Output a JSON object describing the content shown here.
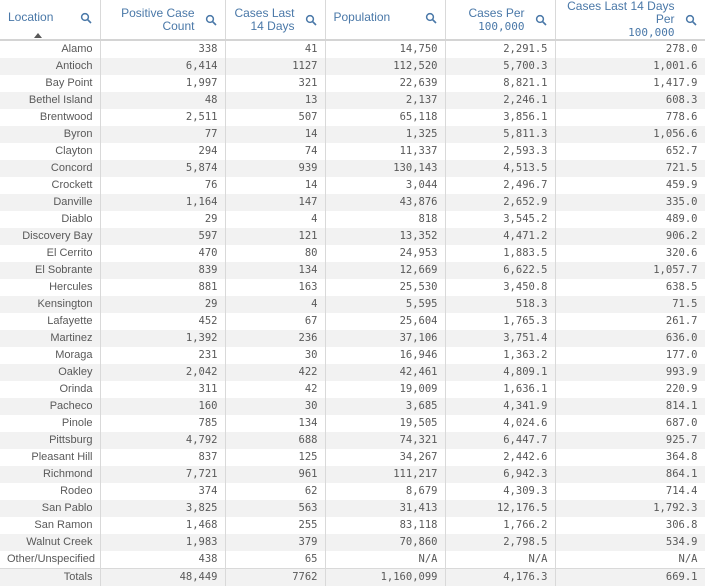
{
  "columns": [
    {
      "label_lines": [
        "Location"
      ],
      "sorted": true
    },
    {
      "label_lines": [
        "Positive Case",
        "Count"
      ]
    },
    {
      "label_lines": [
        "Cases Last",
        "14 Days"
      ]
    },
    {
      "label_lines": [
        "Population"
      ]
    },
    {
      "label_lines": [
        "Cases Per",
        "100,000"
      ]
    },
    {
      "label_lines": [
        "Cases Last 14 Days Per",
        "100,000"
      ]
    }
  ],
  "rows": [
    [
      "Alamo",
      "338",
      "41",
      "14,750",
      "2,291.5",
      "278.0"
    ],
    [
      "Antioch",
      "6,414",
      "1127",
      "112,520",
      "5,700.3",
      "1,001.6"
    ],
    [
      "Bay Point",
      "1,997",
      "321",
      "22,639",
      "8,821.1",
      "1,417.9"
    ],
    [
      "Bethel Island",
      "48",
      "13",
      "2,137",
      "2,246.1",
      "608.3"
    ],
    [
      "Brentwood",
      "2,511",
      "507",
      "65,118",
      "3,856.1",
      "778.6"
    ],
    [
      "Byron",
      "77",
      "14",
      "1,325",
      "5,811.3",
      "1,056.6"
    ],
    [
      "Clayton",
      "294",
      "74",
      "11,337",
      "2,593.3",
      "652.7"
    ],
    [
      "Concord",
      "5,874",
      "939",
      "130,143",
      "4,513.5",
      "721.5"
    ],
    [
      "Crockett",
      "76",
      "14",
      "3,044",
      "2,496.7",
      "459.9"
    ],
    [
      "Danville",
      "1,164",
      "147",
      "43,876",
      "2,652.9",
      "335.0"
    ],
    [
      "Diablo",
      "29",
      "4",
      "818",
      "3,545.2",
      "489.0"
    ],
    [
      "Discovery Bay",
      "597",
      "121",
      "13,352",
      "4,471.2",
      "906.2"
    ],
    [
      "El Cerrito",
      "470",
      "80",
      "24,953",
      "1,883.5",
      "320.6"
    ],
    [
      "El Sobrante",
      "839",
      "134",
      "12,669",
      "6,622.5",
      "1,057.7"
    ],
    [
      "Hercules",
      "881",
      "163",
      "25,530",
      "3,450.8",
      "638.5"
    ],
    [
      "Kensington",
      "29",
      "4",
      "5,595",
      "518.3",
      "71.5"
    ],
    [
      "Lafayette",
      "452",
      "67",
      "25,604",
      "1,765.3",
      "261.7"
    ],
    [
      "Martinez",
      "1,392",
      "236",
      "37,106",
      "3,751.4",
      "636.0"
    ],
    [
      "Moraga",
      "231",
      "30",
      "16,946",
      "1,363.2",
      "177.0"
    ],
    [
      "Oakley",
      "2,042",
      "422",
      "42,461",
      "4,809.1",
      "993.9"
    ],
    [
      "Orinda",
      "311",
      "42",
      "19,009",
      "1,636.1",
      "220.9"
    ],
    [
      "Pacheco",
      "160",
      "30",
      "3,685",
      "4,341.9",
      "814.1"
    ],
    [
      "Pinole",
      "785",
      "134",
      "19,505",
      "4,024.6",
      "687.0"
    ],
    [
      "Pittsburg",
      "4,792",
      "688",
      "74,321",
      "6,447.7",
      "925.7"
    ],
    [
      "Pleasant Hill",
      "837",
      "125",
      "34,267",
      "2,442.6",
      "364.8"
    ],
    [
      "Richmond",
      "7,721",
      "961",
      "111,217",
      "6,942.3",
      "864.1"
    ],
    [
      "Rodeo",
      "374",
      "62",
      "8,679",
      "4,309.3",
      "714.4"
    ],
    [
      "San Pablo",
      "3,825",
      "563",
      "31,413",
      "12,176.5",
      "1,792.3"
    ],
    [
      "San Ramon",
      "1,468",
      "255",
      "83,118",
      "1,766.2",
      "306.8"
    ],
    [
      "Walnut Creek",
      "1,983",
      "379",
      "70,860",
      "2,798.5",
      "534.9"
    ],
    [
      "Other/Unspecified",
      "438",
      "65",
      "N/A",
      "N/A",
      "N/A"
    ]
  ],
  "totals": [
    "Totals",
    "48,449",
    "7762",
    "1,160,099",
    "4,176.3",
    "669.1"
  ],
  "icons": {
    "column_action": "search-icon",
    "sort_indicator": "sort-ascending-icon"
  },
  "colors": {
    "header_text": "#4a78a8",
    "body_text": "#595959",
    "row_stripe": "#f2f2f2",
    "grid": "#d9d9d9"
  }
}
